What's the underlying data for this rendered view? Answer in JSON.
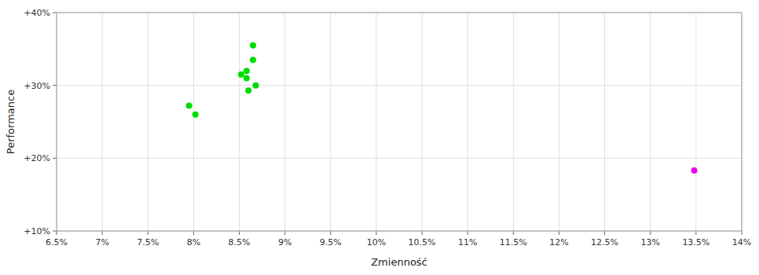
{
  "chart_data": {
    "type": "scatter",
    "xlabel": "Zmienność",
    "ylabel": "Performance",
    "xlim": [
      0.065,
      0.14
    ],
    "ylim": [
      0.1,
      0.4
    ],
    "xticks": [
      {
        "value": 0.065,
        "label": "6.5%"
      },
      {
        "value": 0.07,
        "label": "7%"
      },
      {
        "value": 0.075,
        "label": "7.5%"
      },
      {
        "value": 0.08,
        "label": "8%"
      },
      {
        "value": 0.085,
        "label": "8.5%"
      },
      {
        "value": 0.09,
        "label": "9%"
      },
      {
        "value": 0.095,
        "label": "9.5%"
      },
      {
        "value": 0.1,
        "label": "10%"
      },
      {
        "value": 0.105,
        "label": "10.5%"
      },
      {
        "value": 0.11,
        "label": "11%"
      },
      {
        "value": 0.115,
        "label": "11.5%"
      },
      {
        "value": 0.12,
        "label": "12%"
      },
      {
        "value": 0.125,
        "label": "12.5%"
      },
      {
        "value": 0.13,
        "label": "13%"
      },
      {
        "value": 0.135,
        "label": "13.5%"
      },
      {
        "value": 0.14,
        "label": "14%"
      }
    ],
    "yticks": [
      {
        "value": 0.1,
        "label": "+10%"
      },
      {
        "value": 0.2,
        "label": "+20%"
      },
      {
        "value": 0.3,
        "label": "+30%"
      },
      {
        "value": 0.4,
        "label": "+40%"
      }
    ],
    "grid": true,
    "series": [
      {
        "color": "#00dd00",
        "x": [
          0.0865,
          0.0865,
          0.0858,
          0.0852,
          0.0858,
          0.0868,
          0.086,
          0.0795,
          0.0802
        ],
        "values": [
          0.355,
          0.335,
          0.32,
          0.315,
          0.31,
          0.3,
          0.293,
          0.272,
          0.26
        ]
      },
      {
        "color": "#ee00ee",
        "x": [
          0.1348
        ],
        "values": [
          0.183
        ]
      }
    ]
  }
}
